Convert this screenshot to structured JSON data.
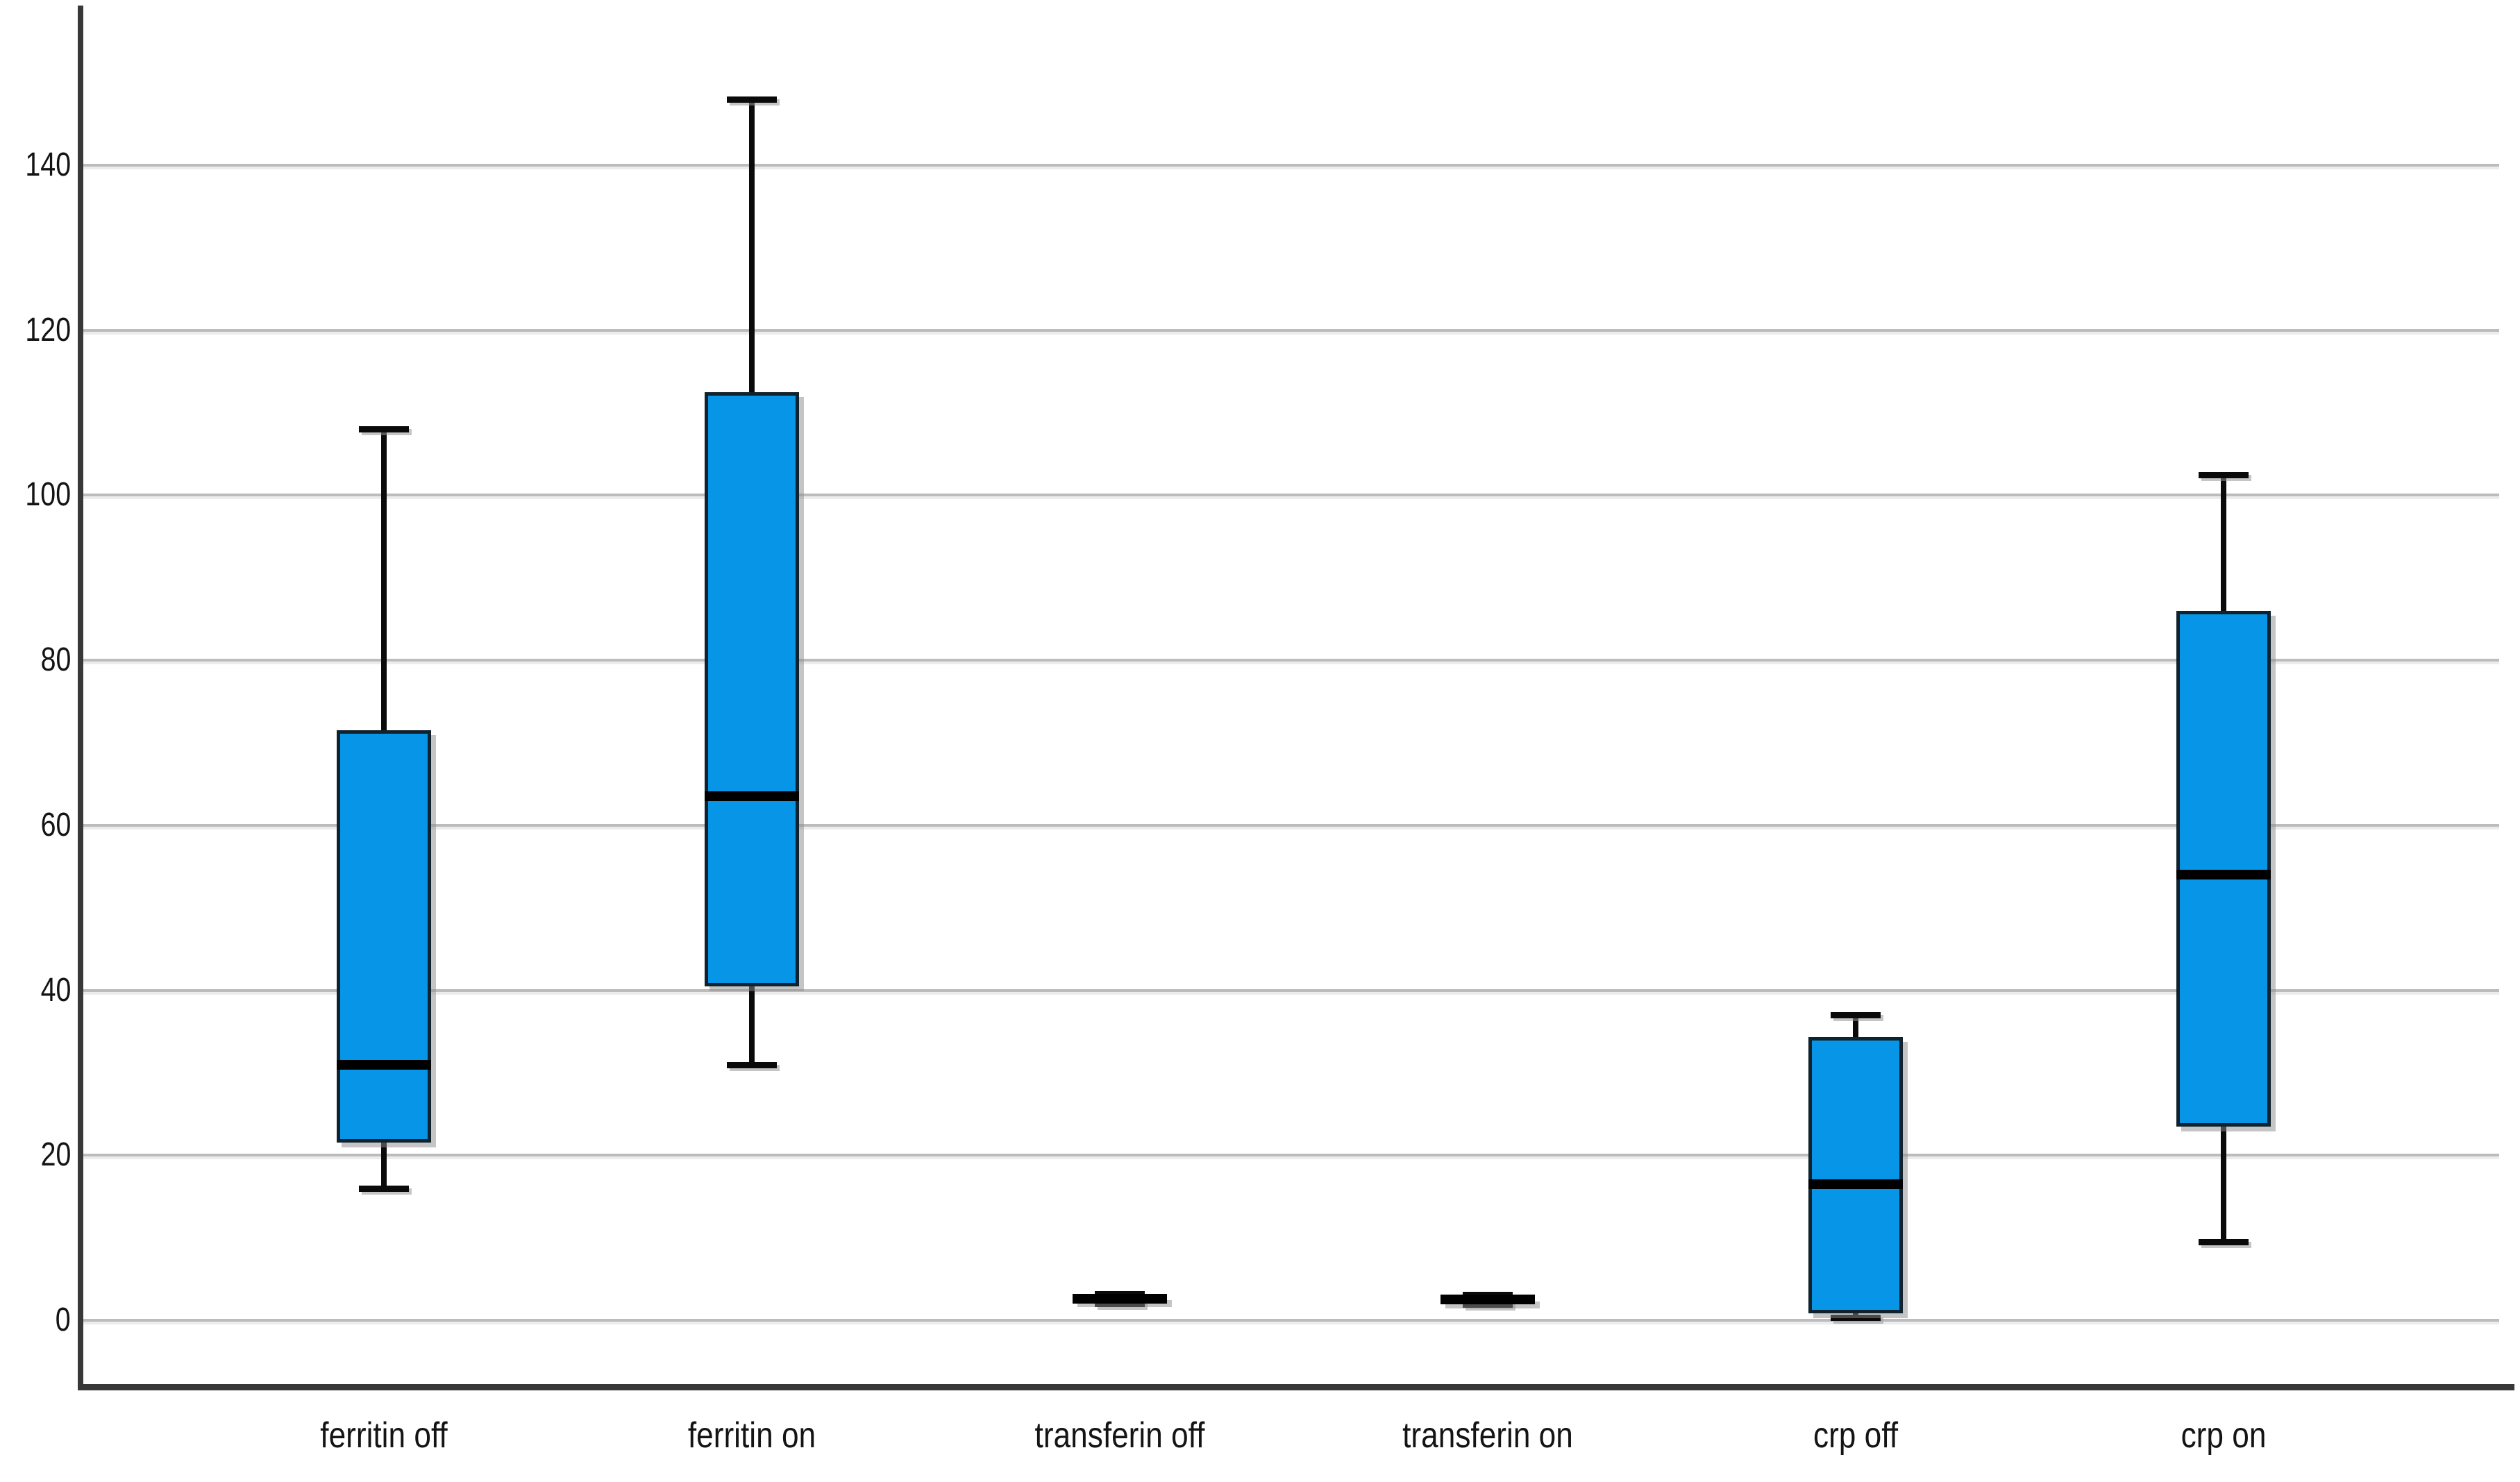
{
  "chart_data": {
    "type": "box",
    "title": "",
    "xlabel": "",
    "ylabel": "",
    "categories": [
      "ferritin off",
      "ferritin on",
      "transferin off",
      "transferin on",
      "crp off",
      "crp on"
    ],
    "series": [
      {
        "category": "ferritin off",
        "min": 16,
        "q1": 21.5,
        "median": 31,
        "q3": 71.5,
        "max": 108
      },
      {
        "category": "ferritin on",
        "min": 31,
        "q1": 40.5,
        "median": 63.5,
        "q3": 112.5,
        "max": 148
      },
      {
        "category": "transferin off",
        "min": 2.0,
        "q1": 2.2,
        "median": 2.6,
        "q3": 3.0,
        "max": 3.2
      },
      {
        "category": "transferin on",
        "min": 1.9,
        "q1": 2.1,
        "median": 2.5,
        "q3": 2.9,
        "max": 3.1
      },
      {
        "category": "crp off",
        "min": 0.3,
        "q1": 0.8,
        "median": 16.5,
        "q3": 34.3,
        "max": 37
      },
      {
        "category": "crp on",
        "min": 9.5,
        "q1": 23.5,
        "median": 54,
        "q3": 86,
        "max": 102.5
      }
    ],
    "yaxis": {
      "ticks": [
        0,
        20,
        40,
        60,
        80,
        100,
        120,
        140
      ],
      "ylim": [
        -8,
        159
      ]
    },
    "grid": true,
    "legend": false,
    "colors": {
      "box_fill": "#0795E8",
      "box_border": "#10222e",
      "median": "#000000",
      "whisker": "#0a0a0a",
      "gridline": "#bcbcbc",
      "axis": "#383838",
      "label": "#141414",
      "background": "#ffffff"
    }
  }
}
